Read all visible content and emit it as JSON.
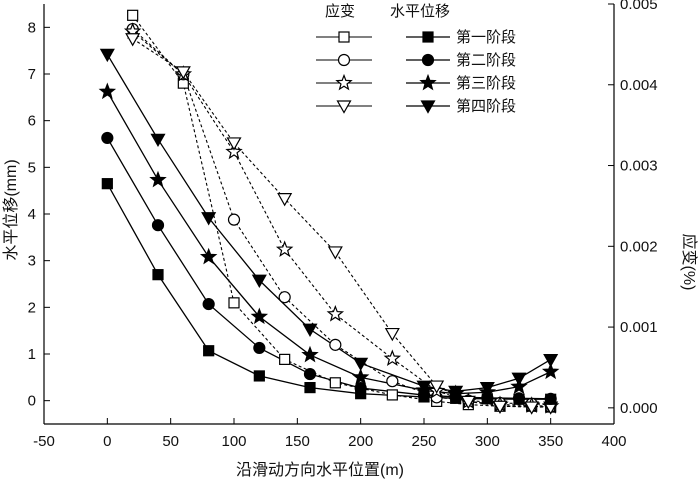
{
  "chart_data": {
    "type": "line",
    "title": "",
    "xlabel": "沿滑动方向水平位置(m)",
    "ylabel": "水平位移(mm)",
    "y2label": "应变(%)",
    "xlim": [
      -50,
      400
    ],
    "ylim": [
      -0.5,
      8.5
    ],
    "y2lim": [
      -0.0002,
      0.005
    ],
    "xticks": [
      "-50",
      "0",
      "50",
      "100",
      "150",
      "200",
      "250",
      "300",
      "350",
      "400"
    ],
    "yticks": [
      "0",
      "1",
      "2",
      "3",
      "4",
      "5",
      "6",
      "7",
      "8"
    ],
    "y2ticks": [
      "0.000",
      "0.001",
      "0.002",
      "0.003",
      "0.004",
      "0.005"
    ],
    "legend_position": "top-right",
    "legend_headers": [
      "应变",
      "水平位移"
    ],
    "legend_labels": [
      "第一阶段",
      "第二阶段",
      "第三阶段",
      "第四阶段"
    ],
    "colors": {
      "line": "#000000",
      "background": "#ffffff"
    },
    "displacement_series": [
      {
        "stage": 1,
        "marker": "square",
        "x": [
          0,
          40,
          80,
          120,
          160,
          200,
          250,
          275,
          300,
          325,
          350
        ],
        "y": [
          4.65,
          2.7,
          1.07,
          0.53,
          0.28,
          0.15,
          0.08,
          0.05,
          0.04,
          0.03,
          0.03
        ]
      },
      {
        "stage": 2,
        "marker": "circle",
        "x": [
          0,
          40,
          80,
          120,
          160,
          200,
          250,
          275,
          300,
          325,
          350
        ],
        "y": [
          5.63,
          3.76,
          2.07,
          1.13,
          0.57,
          0.27,
          0.12,
          0.08,
          0.06,
          0.05,
          0.04
        ]
      },
      {
        "stage": 3,
        "marker": "star",
        "x": [
          0,
          40,
          80,
          120,
          160,
          200,
          250,
          275,
          300,
          325,
          350
        ],
        "y": [
          6.62,
          4.73,
          3.08,
          1.8,
          0.98,
          0.5,
          0.22,
          0.15,
          0.18,
          0.3,
          0.62
        ]
      },
      {
        "stage": 4,
        "marker": "triangle-down",
        "x": [
          0,
          40,
          80,
          120,
          160,
          200,
          250,
          275,
          300,
          325,
          350
        ],
        "y": [
          7.42,
          5.6,
          3.92,
          2.58,
          1.53,
          0.8,
          0.31,
          0.2,
          0.28,
          0.48,
          0.88
        ]
      }
    ],
    "strain_series": [
      {
        "stage": 1,
        "marker": "square-open",
        "x": [
          20,
          60,
          100,
          140,
          180,
          225,
          260,
          285,
          310,
          335,
          350
        ],
        "y": [
          0.00486,
          0.00402,
          0.0013,
          0.0006,
          0.00031,
          0.00016,
          8e-05,
          4e-05,
          2e-05,
          2e-05,
          1e-05
        ]
      },
      {
        "stage": 2,
        "marker": "circle-open",
        "x": [
          20,
          60,
          100,
          140,
          180,
          225,
          260,
          285,
          310,
          335,
          350
        ],
        "y": [
          0.00469,
          0.00413,
          0.00233,
          0.00137,
          0.00078,
          0.00033,
          0.00013,
          9e-05,
          6e-05,
          5e-05,
          4e-05
        ]
      },
      {
        "stage": 3,
        "marker": "star-open",
        "x": [
          20,
          60,
          100,
          140,
          180,
          225,
          260,
          285,
          310,
          335,
          350
        ],
        "y": [
          0.00466,
          0.00413,
          0.00317,
          0.00196,
          0.00116,
          0.00061,
          0.00021,
          8e-05,
          4e-05,
          3e-05,
          2e-05
        ]
      },
      {
        "stage": 4,
        "marker": "triangle-down-open",
        "x": [
          20,
          60,
          100,
          140,
          180,
          225,
          260,
          285,
          310,
          335,
          350
        ],
        "y": [
          0.00457,
          0.00416,
          0.00328,
          0.00259,
          0.00193,
          0.00092,
          0.00027,
          8e-05,
          2e-05,
          1e-05,
          1e-05
        ]
      }
    ]
  }
}
